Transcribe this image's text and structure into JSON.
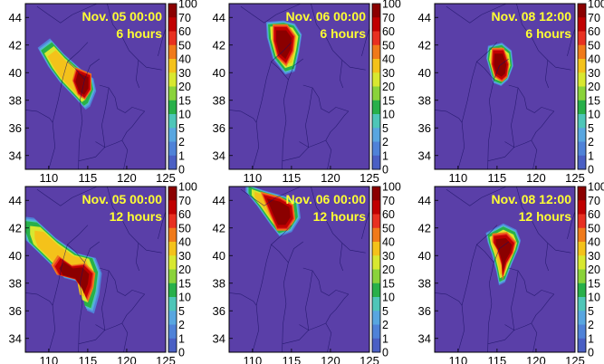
{
  "colors": {
    "background_map": "#5a3fa8",
    "coastline": "#1a1060",
    "annotation": "#ffff33"
  },
  "colorbar": {
    "ticks": [
      "100",
      "70",
      "60",
      "50",
      "40",
      "30",
      "20",
      "15",
      "10",
      "5",
      "2",
      "1",
      "0"
    ],
    "colors": [
      "#8b0000",
      "#c00000",
      "#e83020",
      "#f07a1a",
      "#f4c21a",
      "#d8e830",
      "#8ad33a",
      "#28b04a",
      "#4ec6b8",
      "#58a6e0",
      "#4f82d8",
      "#4a5fc4"
    ]
  },
  "chart_data": [
    {
      "type": "heatmap",
      "panel": 1,
      "annotation_date": "Nov. 05 00:00",
      "annotation_duration": "6 hours",
      "xticks": [
        "110",
        "115",
        "120",
        "125"
      ],
      "yticks": [
        "44",
        "42",
        "40",
        "38",
        "36",
        "34"
      ],
      "xlim": [
        107,
        125
      ],
      "ylim": [
        33,
        45
      ],
      "plume_lon": [
        109,
        110.4,
        112,
        114,
        115.4,
        115.7,
        115,
        114.5,
        113.2,
        111.5,
        110.2,
        109.4
      ],
      "plume_lat": [
        41.6,
        42.2,
        41.2,
        40.2,
        39.6,
        38.8,
        37.8,
        37.6,
        38.4,
        39.4,
        40.4,
        41.2
      ],
      "core_lon": [
        113.6,
        115.3,
        115.3,
        114.6,
        113.8,
        113.2
      ],
      "core_lat": [
        40.2,
        39.8,
        38.8,
        38.2,
        38.5,
        39.4
      ]
    },
    {
      "type": "heatmap",
      "panel": 2,
      "annotation_date": "Nov. 06 00:00",
      "annotation_duration": "6 hours",
      "xticks": [
        "110",
        "115",
        "120",
        "125"
      ],
      "yticks": [
        "44",
        "42",
        "40",
        "38",
        "36",
        "34"
      ],
      "xlim": [
        107,
        125
      ],
      "ylim": [
        33,
        45
      ],
      "plume_lon": [
        112,
        114,
        115.3,
        116.1,
        115.8,
        115.3,
        114.2,
        112.8,
        112.1
      ],
      "plume_lat": [
        43.5,
        43.6,
        43.4,
        42.7,
        41.6,
        40.3,
        40.1,
        41.1,
        42.5
      ],
      "core_lon": [
        112.8,
        114.4,
        115.3,
        115.1,
        114.3,
        113.3,
        112.8
      ],
      "core_lat": [
        43.3,
        43.3,
        42.6,
        41.6,
        40.7,
        41.2,
        42.3
      ]
    },
    {
      "type": "heatmap",
      "panel": 3,
      "annotation_date": "Nov. 08 12:00",
      "annotation_duration": "6 hours",
      "xticks": [
        "110",
        "115",
        "120",
        "125"
      ],
      "yticks": [
        "44",
        "42",
        "40",
        "38",
        "36",
        "34"
      ],
      "xlim": [
        107,
        125
      ],
      "ylim": [
        33,
        45
      ],
      "plume_lon": [
        114,
        115.6,
        116.7,
        116.9,
        116.3,
        115.5,
        114.6,
        114.2,
        113.8
      ],
      "plume_lat": [
        41.8,
        42,
        41.5,
        40.5,
        39.6,
        39.2,
        39.4,
        40.2,
        41
      ],
      "core_lon": [
        114.5,
        115.8,
        116.4,
        116.2,
        115.6,
        114.8,
        114.4
      ],
      "core_lat": [
        41.6,
        41.6,
        40.6,
        39.8,
        39.5,
        39.8,
        40.6
      ]
    },
    {
      "type": "heatmap",
      "panel": 4,
      "annotation_date": "Nov. 05 00:00",
      "annotation_duration": "12 hours",
      "xticks": [
        "110",
        "115",
        "120",
        "125"
      ],
      "yticks": [
        "44",
        "42",
        "40",
        "38",
        "36",
        "34"
      ],
      "xlim": [
        107,
        125
      ],
      "ylim": [
        33,
        45
      ],
      "plume_lon": [
        107,
        108.5,
        111,
        113.5,
        115.6,
        116.3,
        116,
        115.4,
        114.6,
        114,
        112,
        109.5,
        107.5,
        107
      ],
      "plume_lat": [
        42.5,
        42.4,
        41.1,
        40.1,
        39.8,
        38.8,
        37.4,
        36.2,
        36.4,
        38.2,
        38.5,
        39.9,
        41,
        41.8
      ],
      "core_lon": [
        111.5,
        113,
        114.5,
        115.6,
        115.4,
        114.8,
        114.3,
        113.4,
        111.4,
        110.8
      ],
      "core_lat": [
        39.8,
        39.2,
        39.3,
        38.7,
        37.8,
        36.9,
        37.6,
        38.3,
        38.6,
        39.2
      ]
    },
    {
      "type": "heatmap",
      "panel": 5,
      "annotation_date": "Nov. 06 00:00",
      "annotation_duration": "12 hours",
      "xticks": [
        "110",
        "115",
        "120",
        "125"
      ],
      "yticks": [
        "44",
        "42",
        "40",
        "38",
        "36",
        "34"
      ],
      "xlim": [
        107,
        125
      ],
      "ylim": [
        33,
        45
      ],
      "plume_lon": [
        109.5,
        111.5,
        114,
        115.6,
        115.8,
        114.8,
        113.4,
        112.3,
        110.8,
        109.5
      ],
      "plume_lat": [
        45,
        44.6,
        44.2,
        43.8,
        42.8,
        41.9,
        41.6,
        42.4,
        43.6,
        44.5
      ],
      "core_lon": [
        111.4,
        113.5,
        115,
        115.2,
        114.4,
        113.2,
        112.4
      ],
      "core_lat": [
        44.4,
        44.1,
        43.6,
        42.7,
        42,
        42,
        43
      ]
    },
    {
      "type": "heatmap",
      "panel": 6,
      "annotation_date": "Nov. 08 12:00",
      "annotation_duration": "12 hours",
      "xticks": [
        "110",
        "115",
        "120",
        "125"
      ],
      "yticks": [
        "44",
        "42",
        "40",
        "38",
        "36",
        "34"
      ],
      "xlim": [
        107,
        125
      ],
      "ylim": [
        33,
        45
      ],
      "plume_lon": [
        113.8,
        115.8,
        117.3,
        117.8,
        117.5,
        116.8,
        116,
        115.3,
        115,
        114.5,
        114
      ],
      "plume_lat": [
        41.5,
        42.1,
        41.7,
        41,
        40.4,
        39.5,
        38.3,
        38.1,
        39,
        40.1,
        40.9
      ],
      "core_lon": [
        114.6,
        116.2,
        117.2,
        116.9,
        116.2,
        115.7,
        115.6,
        115.1,
        114.6
      ],
      "core_lat": [
        41.4,
        41.5,
        40.9,
        40.2,
        39.5,
        38.5,
        39.4,
        40.4,
        40.9
      ]
    }
  ]
}
